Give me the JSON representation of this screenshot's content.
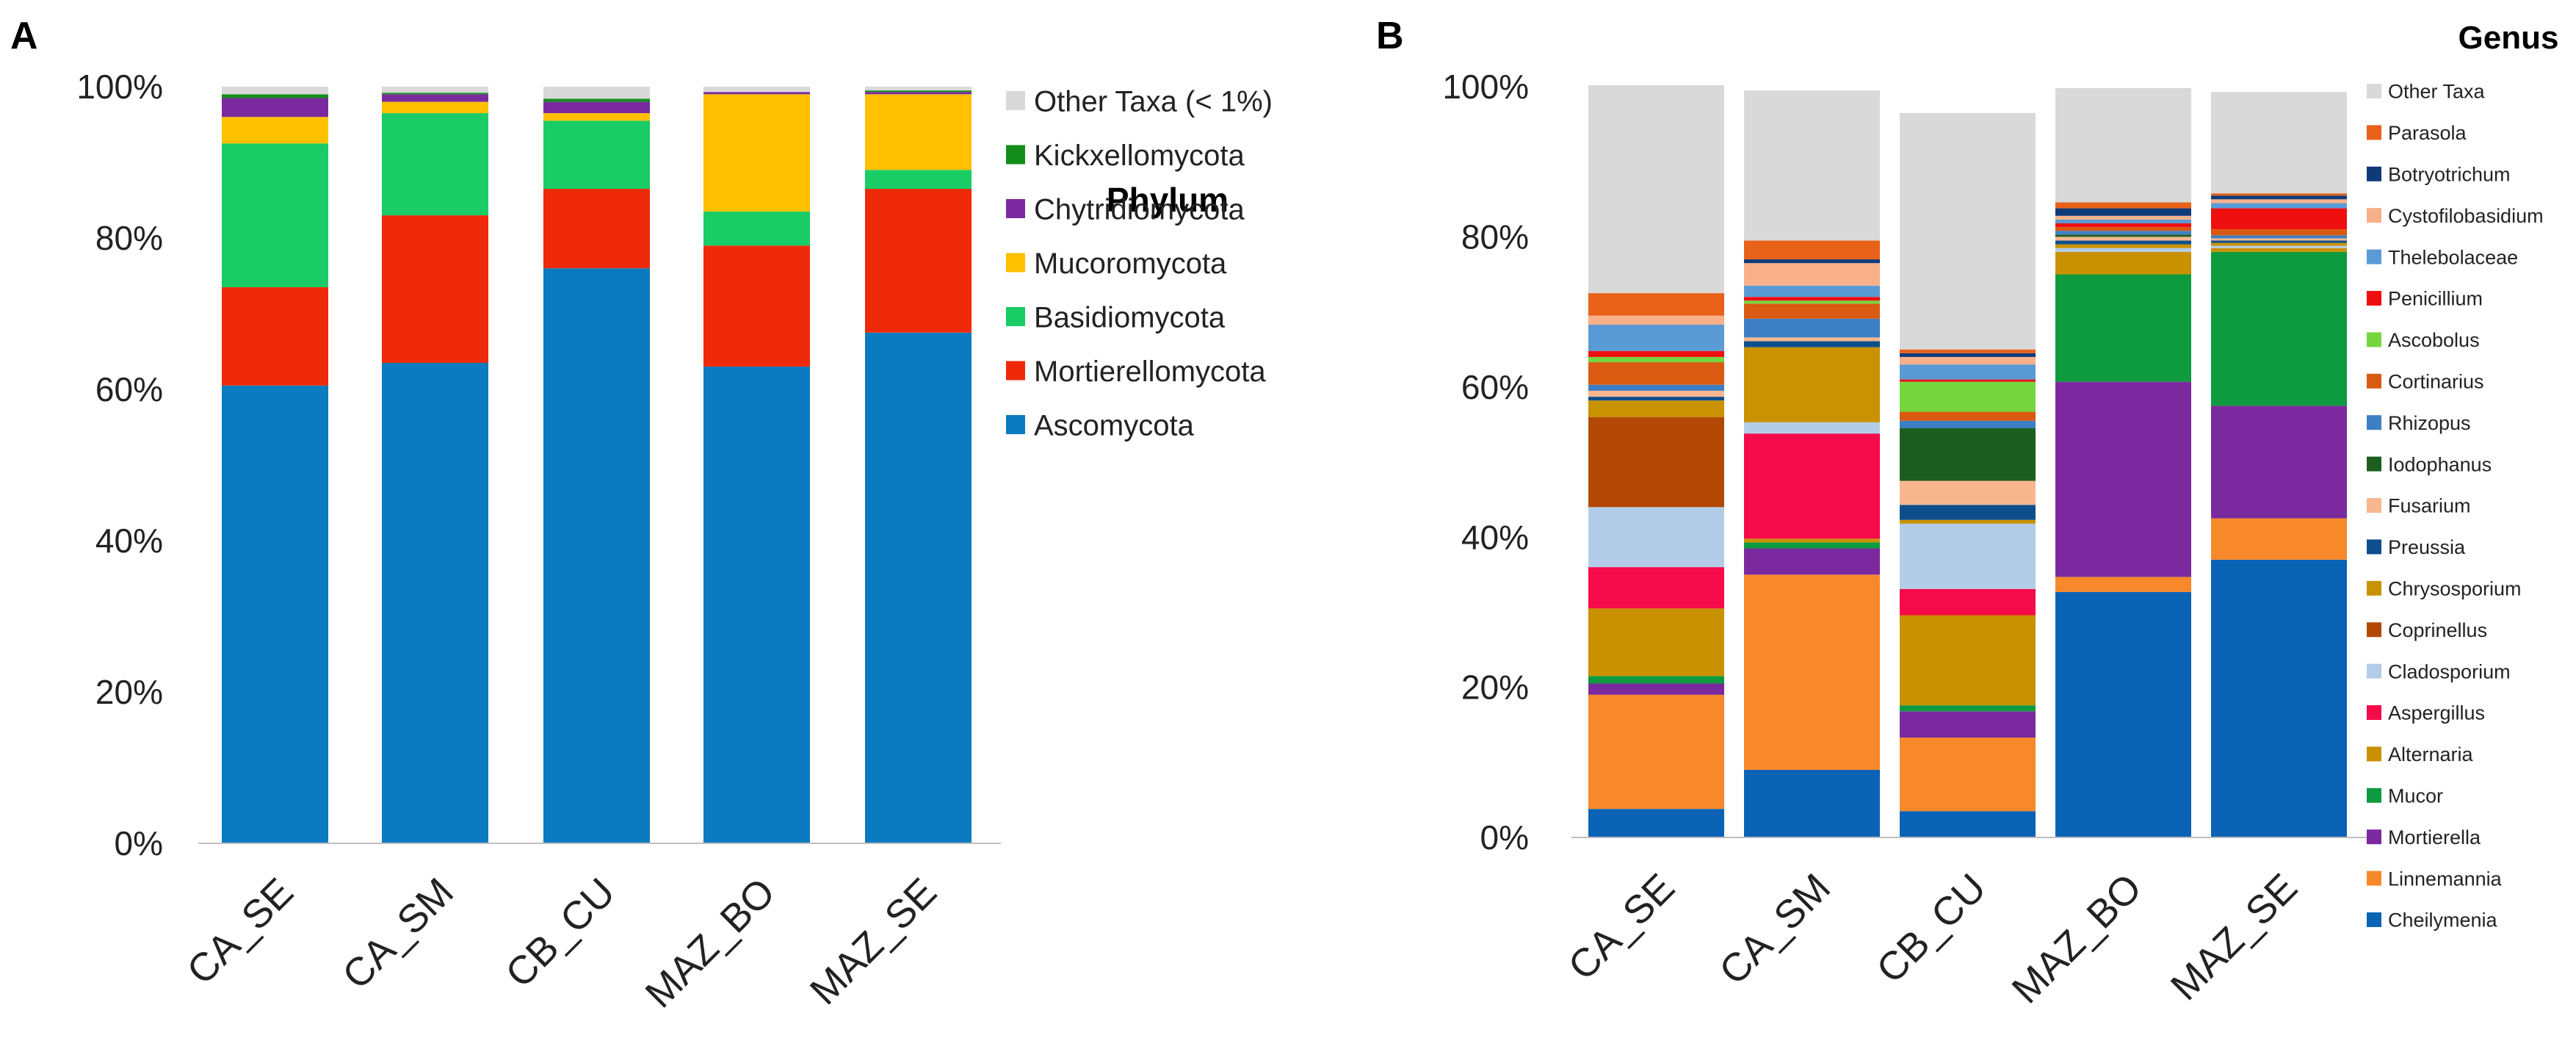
{
  "chart_data": [
    {
      "type": "stacked-bar",
      "panel": "A",
      "title": "",
      "legend_title": "Phylum",
      "categories": [
        "CA_SE",
        "CA_SM",
        "CB_CU",
        "MAZ_BO",
        "MAZ_SE"
      ],
      "ylim": [
        0,
        100
      ],
      "yticks": [
        "0%",
        "20%",
        "40%",
        "60%",
        "80%",
        "100%"
      ],
      "xlabel": "",
      "ylabel": "",
      "series": [
        {
          "name": "Ascomycota",
          "color": "#0a7bbf",
          "values": [
            60.5,
            63.5,
            76,
            63,
            67.5
          ]
        },
        {
          "name": "Mortierellomycota",
          "color": "#ee2a0a",
          "values": [
            13,
            19.5,
            10.5,
            16,
            19
          ]
        },
        {
          "name": "Basidiomycota",
          "color": "#19cc66",
          "values": [
            19,
            13.5,
            9,
            4.5,
            2.5
          ]
        },
        {
          "name": "Mucoromycota",
          "color": "#ffc000",
          "values": [
            3.5,
            1.5,
            1,
            15.5,
            10
          ]
        },
        {
          "name": "Chytridiomycota",
          "color": "#7a2a9e",
          "values": [
            2.5,
            1,
            1.5,
            0.3,
            0.3
          ]
        },
        {
          "name": "Kickxellomycota",
          "color": "#148c1c",
          "values": [
            0.5,
            0.2,
            0.4,
            0,
            0.2
          ]
        },
        {
          "name": "Other Taxa (< 1%)",
          "color": "#d9d9d9",
          "values": [
            1,
            0.8,
            1.6,
            0.7,
            0.5
          ]
        }
      ]
    },
    {
      "type": "stacked-bar",
      "panel": "B",
      "title": "",
      "legend_title": "Genus",
      "categories": [
        "CA_SE",
        "CA_SM",
        "CB_CU",
        "MAZ_BO",
        "MAZ_SE"
      ],
      "ylim": [
        0,
        100
      ],
      "yticks": [
        "0%",
        "20%",
        "40%",
        "60%",
        "80%",
        "100%"
      ],
      "xlabel": "",
      "ylabel": "",
      "series": [
        {
          "name": "Cheilymenia",
          "color": "#0b63b5",
          "values": [
            3.8,
            9,
            3.5,
            32.7,
            37
          ]
        },
        {
          "name": "Linnemannia",
          "color": "#f7892a",
          "values": [
            15.2,
            26,
            9.8,
            2,
            5.5
          ]
        },
        {
          "name": "Mortierella",
          "color": "#7a2a9e",
          "values": [
            1.5,
            3.5,
            3.5,
            26,
            15
          ]
        },
        {
          "name": "Mucor",
          "color": "#0e9a3f",
          "values": [
            1,
            0.8,
            0.8,
            14.3,
            20.5
          ]
        },
        {
          "name": "Alternaria",
          "color": "#c99100",
          "values": [
            9,
            0.5,
            12,
            3,
            0.5
          ]
        },
        {
          "name": "Aspergillus",
          "color": "#f50a4a",
          "values": [
            5.5,
            14,
            3.5,
            0,
            0
          ]
        },
        {
          "name": "Cladosporium",
          "color": "#b3cde8",
          "values": [
            8,
            1.5,
            8.7,
            0.5,
            0.3
          ]
        },
        {
          "name": "Coprinellus",
          "color": "#b34805",
          "values": [
            12,
            0,
            0,
            0,
            0
          ]
        },
        {
          "name": "Chrysosporium",
          "color": "#c89200",
          "values": [
            2.2,
            10,
            0.5,
            0.5,
            0.4
          ]
        },
        {
          "name": "Preussia",
          "color": "#0d4f8c",
          "values": [
            0.5,
            0.8,
            2,
            0.5,
            0.3
          ]
        },
        {
          "name": "Fusarium",
          "color": "#f9b78f",
          "values": [
            0.8,
            0.5,
            3.2,
            0.5,
            0.3
          ]
        },
        {
          "name": "Iodophanus",
          "color": "#1d5e20",
          "values": [
            0,
            0,
            7,
            0.3,
            0
          ]
        },
        {
          "name": "Rhizopus",
          "color": "#3d7fc4",
          "values": [
            0.8,
            2.5,
            1,
            0.5,
            0.4
          ]
        },
        {
          "name": "Cortinarius",
          "color": "#d95a10",
          "values": [
            3,
            2,
            1.2,
            0.5,
            0.8
          ]
        },
        {
          "name": "Ascobolus",
          "color": "#76d63f",
          "values": [
            0.7,
            0.4,
            4,
            0,
            0
          ]
        },
        {
          "name": "Penicillium",
          "color": "#ee1010",
          "values": [
            0.8,
            0.5,
            0.3,
            0.5,
            2.8
          ]
        },
        {
          "name": "Thelebolaceae",
          "color": "#5b9bd5",
          "values": [
            3.5,
            1.5,
            2,
            0.5,
            0.7
          ]
        },
        {
          "name": "Cystofilobasidium",
          "color": "#f7b08a",
          "values": [
            1.2,
            3,
            1,
            0.5,
            0.5
          ]
        },
        {
          "name": "Botryotrichum",
          "color": "#0f3a78",
          "values": [
            0,
            0.5,
            0.5,
            1,
            0.5
          ]
        },
        {
          "name": "Parasola",
          "color": "#e8621a",
          "values": [
            3,
            2.5,
            0.5,
            0.8,
            0.3
          ]
        },
        {
          "name": "Other Taxa",
          "color": "#d9d9d9",
          "values": [
            27.7,
            20,
            31.5,
            15.2,
            13.5
          ]
        }
      ]
    }
  ]
}
